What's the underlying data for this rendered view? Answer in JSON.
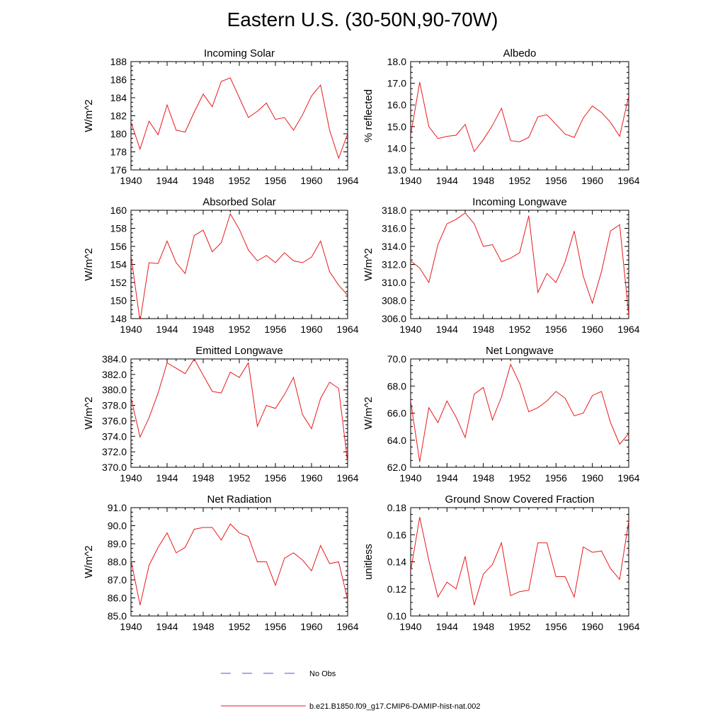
{
  "figure_title": "Eastern U.S. (30-50N,90-70W)",
  "legend": {
    "entries": [
      {
        "label": "No Obs",
        "color": "#5555cc",
        "style": "dashed"
      },
      {
        "label": "b.e21.B1850.f09_g17.CMIP6-DAMIP-hist-nat.002",
        "color": "#e8191c",
        "style": "solid"
      }
    ]
  },
  "colors": {
    "line": "#e8191c",
    "axis": "#000000"
  },
  "chart_data": [
    {
      "type": "line",
      "title": "Incoming Solar",
      "ylabel": "W/m^2",
      "xlim": [
        1940,
        1964
      ],
      "ylim": [
        176,
        188
      ],
      "xticks": [
        "1940",
        "1944",
        "1948",
        "1952",
        "1956",
        "1960",
        "1964"
      ],
      "yticks": [
        "176",
        "178",
        "180",
        "182",
        "184",
        "186",
        "188"
      ],
      "x": [
        1940,
        1941,
        1942,
        1943,
        1944,
        1945,
        1946,
        1947,
        1948,
        1949,
        1950,
        1951,
        1952,
        1953,
        1954,
        1955,
        1956,
        1957,
        1958,
        1959,
        1960,
        1961,
        1962,
        1963,
        1964
      ],
      "series": [
        {
          "values": [
            181.3,
            178.3,
            181.4,
            179.9,
            183.2,
            180.4,
            180.2,
            182.4,
            184.4,
            183.0,
            185.8,
            186.2,
            184.0,
            181.8,
            182.5,
            183.4,
            181.6,
            181.8,
            180.4,
            182.1,
            184.2,
            185.4,
            180.4,
            177.3,
            180.0
          ]
        }
      ]
    },
    {
      "type": "line",
      "title": "Albedo",
      "ylabel": "% reflected",
      "xlim": [
        1940,
        1964
      ],
      "ylim": [
        13.0,
        18.0
      ],
      "xticks": [
        "1940",
        "1944",
        "1948",
        "1952",
        "1956",
        "1960",
        "1964"
      ],
      "yticks": [
        "13.0",
        "14.0",
        "15.0",
        "16.0",
        "17.0",
        "18.0"
      ],
      "x": [
        1940,
        1941,
        1942,
        1943,
        1944,
        1945,
        1946,
        1947,
        1948,
        1949,
        1950,
        1951,
        1952,
        1953,
        1954,
        1955,
        1956,
        1957,
        1958,
        1959,
        1960,
        1961,
        1962,
        1963,
        1964
      ],
      "series": [
        {
          "values": [
            14.6,
            17.05,
            15.0,
            14.45,
            14.55,
            14.6,
            15.1,
            13.85,
            14.4,
            15.05,
            15.85,
            14.35,
            14.3,
            14.5,
            15.45,
            15.55,
            15.1,
            14.65,
            14.5,
            15.4,
            15.95,
            15.65,
            15.2,
            14.55,
            16.4
          ]
        }
      ]
    },
    {
      "type": "line",
      "title": "Absorbed Solar",
      "ylabel": "W/m^2",
      "xlim": [
        1940,
        1964
      ],
      "ylim": [
        148,
        160
      ],
      "xticks": [
        "1940",
        "1944",
        "1948",
        "1952",
        "1956",
        "1960",
        "1964"
      ],
      "yticks": [
        "148",
        "150",
        "152",
        "154",
        "156",
        "158",
        "160"
      ],
      "x": [
        1940,
        1941,
        1942,
        1943,
        1944,
        1945,
        1946,
        1947,
        1948,
        1949,
        1950,
        1951,
        1952,
        1953,
        1954,
        1955,
        1956,
        1957,
        1958,
        1959,
        1960,
        1961,
        1962,
        1963,
        1964
      ],
      "series": [
        {
          "values": [
            155.0,
            147.7,
            154.2,
            154.1,
            156.6,
            154.2,
            153.0,
            157.2,
            157.8,
            155.4,
            156.4,
            159.6,
            157.9,
            155.6,
            154.4,
            155.0,
            154.2,
            155.3,
            154.4,
            154.2,
            154.8,
            156.6,
            153.2,
            151.7,
            150.6
          ]
        }
      ]
    },
    {
      "type": "line",
      "title": "Incoming Longwave",
      "ylabel": "W/m^2",
      "xlim": [
        1940,
        1964
      ],
      "ylim": [
        306.0,
        318.0
      ],
      "xticks": [
        "1940",
        "1944",
        "1948",
        "1952",
        "1956",
        "1960",
        "1964"
      ],
      "yticks": [
        "306.0",
        "308.0",
        "310.0",
        "312.0",
        "314.0",
        "316.0",
        "318.0"
      ],
      "x": [
        1940,
        1941,
        1942,
        1943,
        1944,
        1945,
        1946,
        1947,
        1948,
        1949,
        1950,
        1951,
        1952,
        1953,
        1954,
        1955,
        1956,
        1957,
        1958,
        1959,
        1960,
        1961,
        1962,
        1963,
        1964
      ],
      "series": [
        {
          "values": [
            312.4,
            311.6,
            310.0,
            314.2,
            316.5,
            317.0,
            317.7,
            316.5,
            314.0,
            314.2,
            312.3,
            312.7,
            313.3,
            317.4,
            308.9,
            311.0,
            310.0,
            312.3,
            315.7,
            310.7,
            307.7,
            311.2,
            315.7,
            316.4,
            306.4
          ]
        }
      ]
    },
    {
      "type": "line",
      "title": "Emitted Longwave",
      "ylabel": "W/m^2",
      "xlim": [
        1940,
        1964
      ],
      "ylim": [
        370.0,
        384.0
      ],
      "xticks": [
        "1940",
        "1944",
        "1948",
        "1952",
        "1956",
        "1960",
        "1964"
      ],
      "yticks": [
        "370.0",
        "372.0",
        "374.0",
        "376.0",
        "378.0",
        "380.0",
        "382.0",
        "384.0"
      ],
      "x": [
        1940,
        1941,
        1942,
        1943,
        1944,
        1945,
        1946,
        1947,
        1948,
        1949,
        1950,
        1951,
        1952,
        1953,
        1954,
        1955,
        1956,
        1957,
        1958,
        1959,
        1960,
        1961,
        1962,
        1963,
        1964
      ],
      "series": [
        {
          "values": [
            379.0,
            373.9,
            376.4,
            379.6,
            383.5,
            382.8,
            382.1,
            384.0,
            381.9,
            379.8,
            379.6,
            382.3,
            381.6,
            383.5,
            375.3,
            378.0,
            377.6,
            379.4,
            381.6,
            376.8,
            375.0,
            378.9,
            381.0,
            380.2,
            370.6
          ]
        }
      ]
    },
    {
      "type": "line",
      "title": "Net Longwave",
      "ylabel": "W/m^2",
      "xlim": [
        1940,
        1964
      ],
      "ylim": [
        62.0,
        70.0
      ],
      "xticks": [
        "1940",
        "1944",
        "1948",
        "1952",
        "1956",
        "1960",
        "1964"
      ],
      "yticks": [
        "62.0",
        "64.0",
        "66.0",
        "68.0",
        "70.0"
      ],
      "x": [
        1940,
        1941,
        1942,
        1943,
        1944,
        1945,
        1946,
        1947,
        1948,
        1949,
        1950,
        1951,
        1952,
        1953,
        1954,
        1955,
        1956,
        1957,
        1958,
        1959,
        1960,
        1961,
        1962,
        1963,
        1964
      ],
      "series": [
        {
          "values": [
            66.9,
            62.4,
            66.4,
            65.3,
            66.9,
            65.7,
            64.2,
            67.4,
            67.9,
            65.5,
            67.2,
            69.6,
            68.2,
            66.1,
            66.4,
            66.9,
            67.6,
            67.1,
            65.8,
            66.0,
            67.3,
            67.6,
            65.3,
            63.7,
            64.5
          ]
        }
      ]
    },
    {
      "type": "line",
      "title": "Net Radiation",
      "ylabel": "W/m^2",
      "xlim": [
        1940,
        1964
      ],
      "ylim": [
        85.0,
        91.0
      ],
      "xticks": [
        "1940",
        "1944",
        "1948",
        "1952",
        "1956",
        "1960",
        "1964"
      ],
      "yticks": [
        "85.0",
        "86.0",
        "87.0",
        "88.0",
        "89.0",
        "90.0",
        "91.0"
      ],
      "x": [
        1940,
        1941,
        1942,
        1943,
        1944,
        1945,
        1946,
        1947,
        1948,
        1949,
        1950,
        1951,
        1952,
        1953,
        1954,
        1955,
        1956,
        1957,
        1958,
        1959,
        1960,
        1961,
        1962,
        1963,
        1964
      ],
      "series": [
        {
          "values": [
            88.1,
            85.6,
            87.8,
            88.8,
            89.6,
            88.5,
            88.8,
            89.8,
            89.9,
            89.9,
            89.2,
            90.1,
            89.6,
            89.4,
            88.0,
            88.0,
            86.7,
            88.2,
            88.5,
            88.1,
            87.5,
            88.9,
            87.9,
            88.0,
            85.9
          ]
        }
      ]
    },
    {
      "type": "line",
      "title": "Ground Snow Covered Fraction",
      "ylabel": "unitless",
      "xlim": [
        1940,
        1964
      ],
      "ylim": [
        0.1,
        0.18
      ],
      "xticks": [
        "1940",
        "1944",
        "1948",
        "1952",
        "1956",
        "1960",
        "1964"
      ],
      "yticks": [
        "0.10",
        "0.12",
        "0.14",
        "0.16",
        "0.18"
      ],
      "x": [
        1940,
        1941,
        1942,
        1943,
        1944,
        1945,
        1946,
        1947,
        1948,
        1949,
        1950,
        1951,
        1952,
        1953,
        1954,
        1955,
        1956,
        1957,
        1958,
        1959,
        1960,
        1961,
        1962,
        1963,
        1964
      ],
      "series": [
        {
          "values": [
            0.133,
            0.173,
            0.141,
            0.114,
            0.125,
            0.12,
            0.144,
            0.108,
            0.131,
            0.138,
            0.154,
            0.115,
            0.118,
            0.119,
            0.154,
            0.154,
            0.129,
            0.129,
            0.114,
            0.151,
            0.147,
            0.148,
            0.135,
            0.127,
            0.17
          ]
        }
      ]
    }
  ]
}
